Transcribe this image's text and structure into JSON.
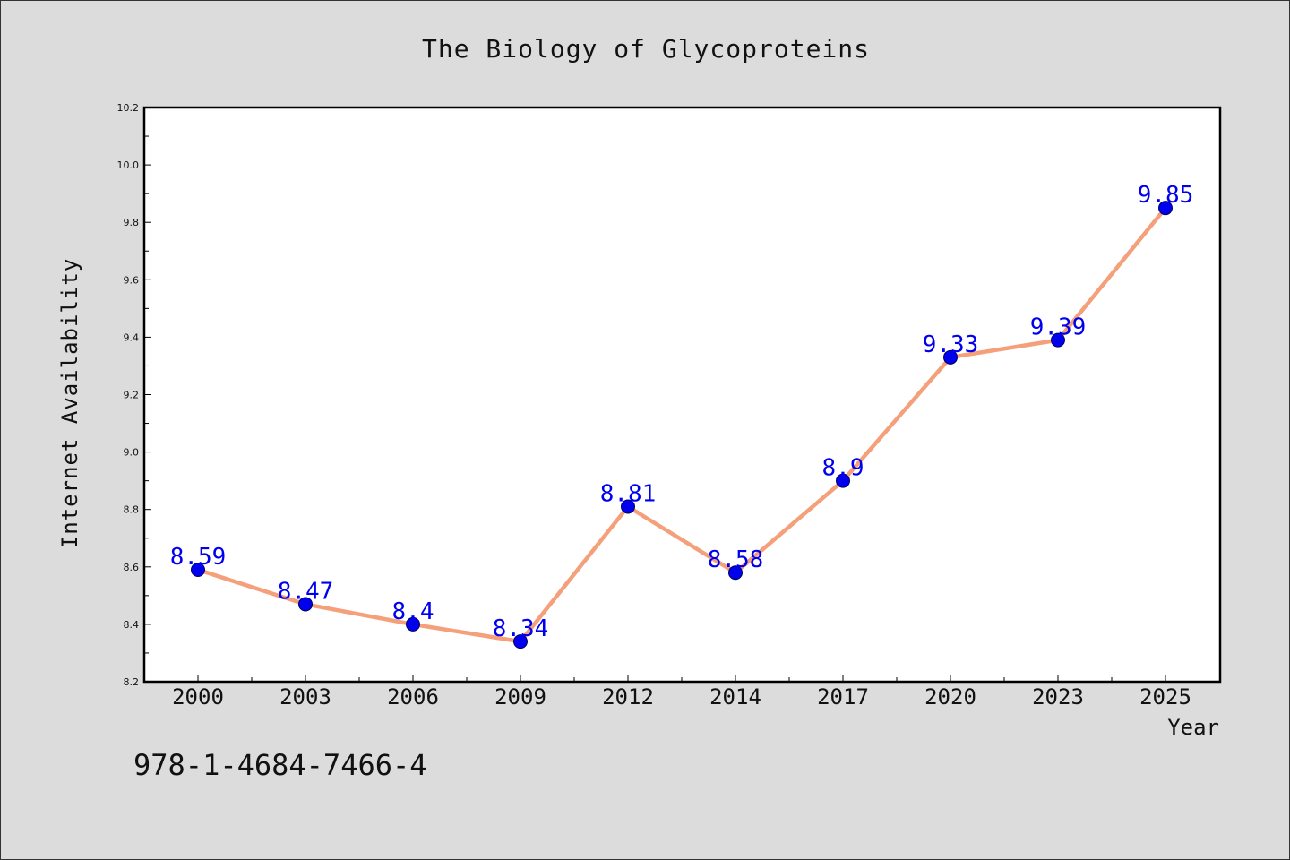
{
  "chart_data": {
    "type": "line",
    "title": "The Biology of Glycoproteins",
    "xlabel": "Year",
    "ylabel": "Internet Availability",
    "categories": [
      "2000",
      "2003",
      "2006",
      "2009",
      "2012",
      "2014",
      "2017",
      "2020",
      "2023",
      "2025"
    ],
    "series": [
      {
        "values": [
          8.59,
          8.47,
          8.4,
          8.34,
          8.81,
          8.58,
          8.9,
          9.33,
          9.39,
          9.85
        ]
      }
    ],
    "data_labels": [
      "8.59",
      "8.47",
      "8.4",
      "8.34",
      "8.81",
      "8.58",
      "8.9",
      "9.33",
      "9.39",
      "9.85"
    ],
    "ylim": [
      8.2,
      10.2
    ],
    "yticks": [
      "8.2",
      "8.4",
      "8.6",
      "8.8",
      "9.0",
      "9.2",
      "9.4",
      "9.6",
      "9.8",
      "10.0",
      "10.2"
    ],
    "grid": false,
    "colors": {
      "line": "#f4a07a",
      "marker": "#0000ee",
      "label": "#0000ee",
      "plot_bg": "#ffffff",
      "page_bg": "#dcdcdc"
    }
  },
  "footer": {
    "isbn": "978-1-4684-7466-4"
  }
}
